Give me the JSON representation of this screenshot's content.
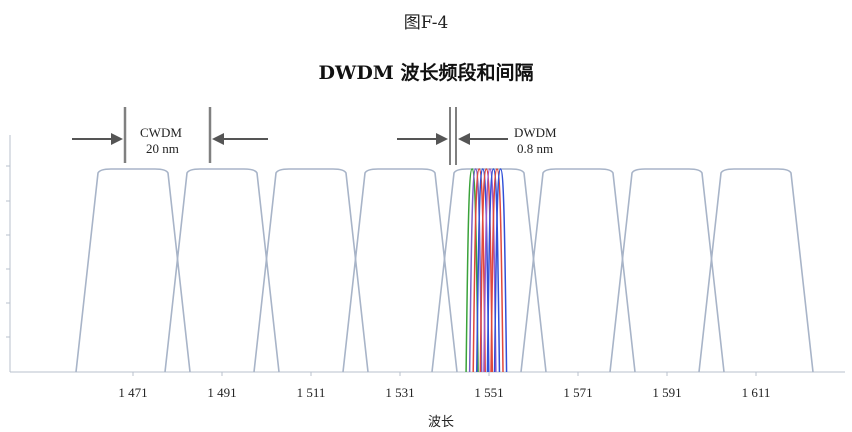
{
  "figure": {
    "label": "图F-4",
    "title": "DWDM 波长频段和间隔"
  },
  "chart_data": {
    "type": "line",
    "xlabel": "波长",
    "x_tick_labels": [
      "1 471",
      "1 491",
      "1 511",
      "1 531",
      "1 551",
      "1 571",
      "1 591",
      "1 611"
    ],
    "cwdm_channels": [
      1471,
      1491,
      1511,
      1531,
      1551,
      1571,
      1591,
      1611
    ],
    "cwdm_color": "#a8b4c8",
    "dwdm_channels": [
      1547.2,
      1548.0,
      1548.8,
      1549.6,
      1550.4,
      1551.2,
      1552.0,
      1552.8,
      1553.6
    ],
    "dwdm_colors": [
      "#3aa23a",
      "#7a5fc8",
      "#e0483c",
      "#3050d8",
      "#e0483c",
      "#a05ac8",
      "#3050d8",
      "#e0483c",
      "#3050d8"
    ],
    "annotations": {
      "cwdm": {
        "name": "CWDM",
        "spacing": "20 nm"
      },
      "dwdm": {
        "name": "DWDM",
        "spacing": "0.8 nm"
      }
    },
    "grid": false
  }
}
